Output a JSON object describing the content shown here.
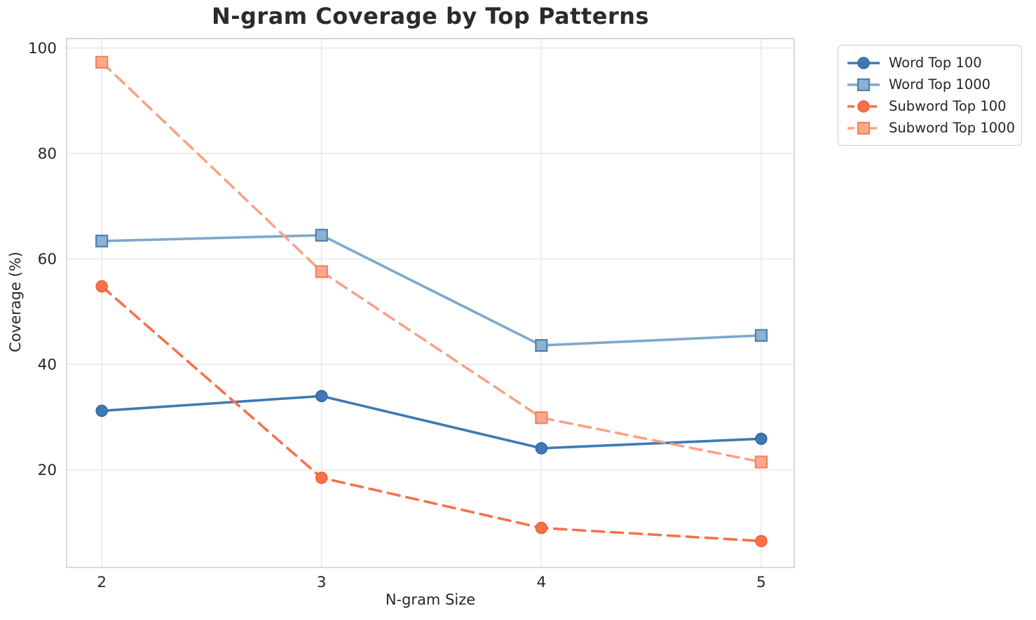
{
  "chart_data": {
    "type": "line",
    "title": "N-gram Coverage by Top Patterns",
    "xlabel": "N-gram Size",
    "ylabel": "Coverage (%)",
    "x": [
      2,
      3,
      4,
      5
    ],
    "x_tick_labels": [
      "2",
      "3",
      "4",
      "5"
    ],
    "y_ticks": [
      20,
      40,
      60,
      80,
      100
    ],
    "y_tick_labels": [
      "20",
      "40",
      "60",
      "80",
      "100"
    ],
    "xlim": [
      1.84,
      5.15
    ],
    "ylim": [
      1.5,
      101.8
    ],
    "grid": true,
    "legend_position": "outside-top-right",
    "series": [
      {
        "name": "Word Top 100",
        "values": [
          31.2,
          34.0,
          24.1,
          25.9
        ],
        "color": "#3d7ab5",
        "marker_face": "#3d7ab5",
        "marker_edge": "#2f6699",
        "marker": "circle",
        "line_style": "solid"
      },
      {
        "name": "Word Top 1000",
        "values": [
          63.4,
          64.5,
          43.6,
          45.5
        ],
        "color": "#7ea8cd",
        "marker_face": "#8db1d3",
        "marker_edge": "#4d80ae",
        "marker": "square",
        "line_style": "solid"
      },
      {
        "name": "Subword Top 100",
        "values": [
          54.8,
          18.5,
          9.0,
          6.5
        ],
        "color": "#f8714a",
        "marker_face": "#f8714a",
        "marker_edge": "#ef5c33",
        "marker": "circle",
        "line_style": "dashed"
      },
      {
        "name": "Subword Top 1000",
        "values": [
          97.3,
          57.6,
          29.9,
          21.5
        ],
        "color": "#f9a285",
        "marker_face": "#f9aa8e",
        "marker_edge": "#f4815c",
        "marker": "square",
        "line_style": "dashed"
      }
    ],
    "colors": {
      "text": "#262626",
      "title": "#2b2b2b",
      "grid": "#ebebeb",
      "spine": "#d9d9d9",
      "background": "#ffffff",
      "legend_border": "#cccccc"
    }
  }
}
